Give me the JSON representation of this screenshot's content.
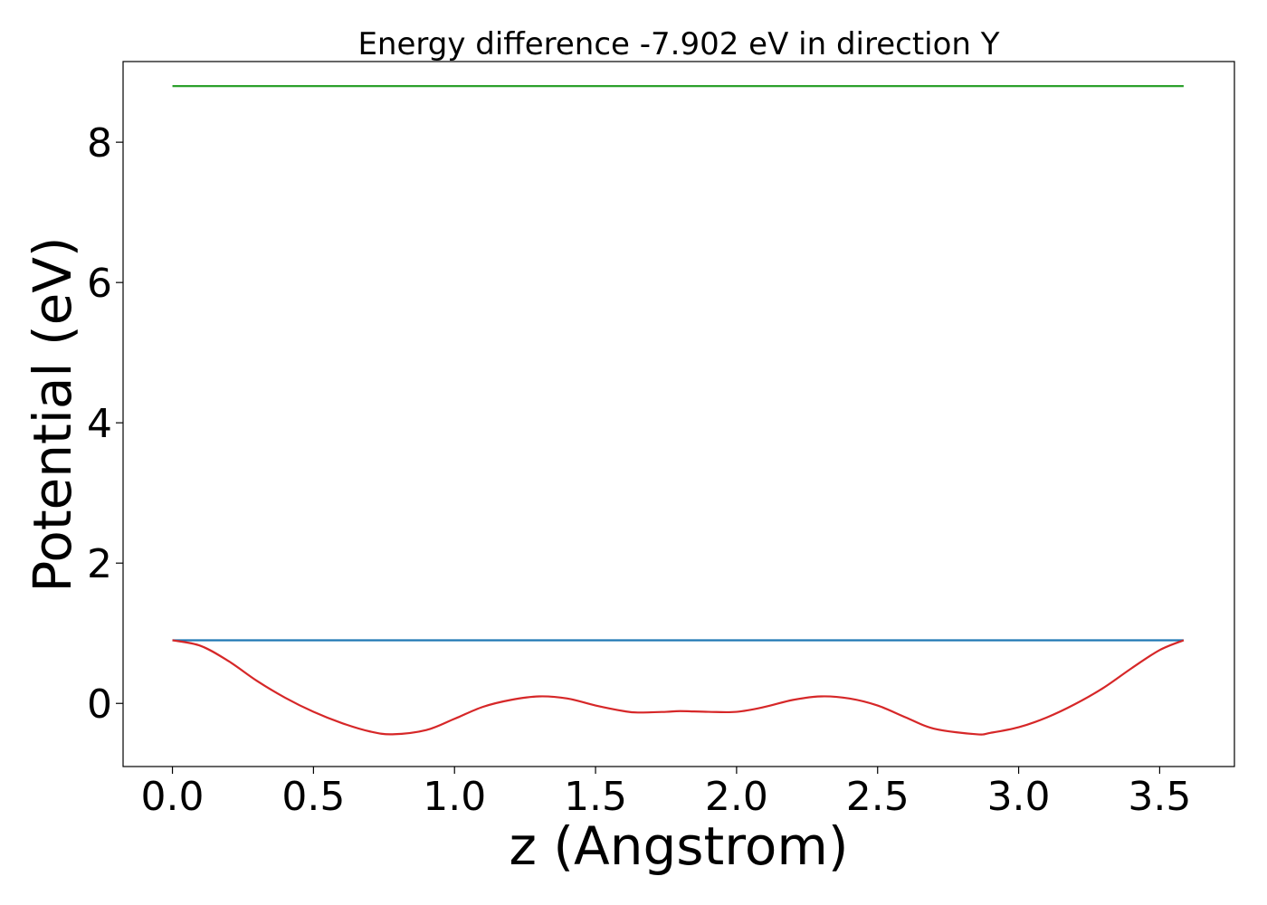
{
  "chart_data": {
    "type": "line",
    "title": "Energy difference -7.902 eV in direction Y",
    "xlabel": "z (Angstrom)",
    "ylabel": "Potential (eV)",
    "xlim": [
      -0.175,
      3.765
    ],
    "ylim": [
      -0.9,
      9.15
    ],
    "xticks": [
      0.0,
      0.5,
      1.0,
      1.5,
      2.0,
      2.5,
      3.0,
      3.5
    ],
    "xtick_labels": [
      "0.0",
      "0.5",
      "1.0",
      "1.5",
      "2.0",
      "2.5",
      "3.0",
      "3.5"
    ],
    "yticks": [
      0,
      2,
      4,
      6,
      8
    ],
    "ytick_labels": [
      "0",
      "2",
      "4",
      "6",
      "8"
    ],
    "grid": false,
    "series": [
      {
        "color": "#2ca02c",
        "x": [
          0.0,
          3.585
        ],
        "y": [
          8.8,
          8.8
        ]
      },
      {
        "color": "#1f77b4",
        "x": [
          0.0,
          3.585
        ],
        "y": [
          0.9,
          0.9
        ]
      },
      {
        "color": "#d62728",
        "x": [
          0.0,
          0.1,
          0.2,
          0.3,
          0.4,
          0.5,
          0.6,
          0.7,
          0.78,
          0.9,
          1.0,
          1.1,
          1.2,
          1.3,
          1.4,
          1.5,
          1.6,
          1.65,
          1.75,
          1.8,
          1.9,
          2.0,
          2.1,
          2.2,
          2.3,
          2.4,
          2.5,
          2.6,
          2.7,
          2.85,
          2.9,
          3.0,
          3.1,
          3.2,
          3.3,
          3.4,
          3.5,
          3.585
        ],
        "y": [
          0.9,
          0.82,
          0.6,
          0.32,
          0.08,
          -0.12,
          -0.28,
          -0.4,
          -0.44,
          -0.38,
          -0.22,
          -0.05,
          0.05,
          0.1,
          0.07,
          -0.03,
          -0.11,
          -0.13,
          -0.12,
          -0.11,
          -0.12,
          -0.12,
          -0.05,
          0.05,
          0.1,
          0.07,
          -0.03,
          -0.2,
          -0.36,
          -0.44,
          -0.42,
          -0.34,
          -0.2,
          -0.01,
          0.22,
          0.5,
          0.76,
          0.9
        ]
      }
    ]
  }
}
